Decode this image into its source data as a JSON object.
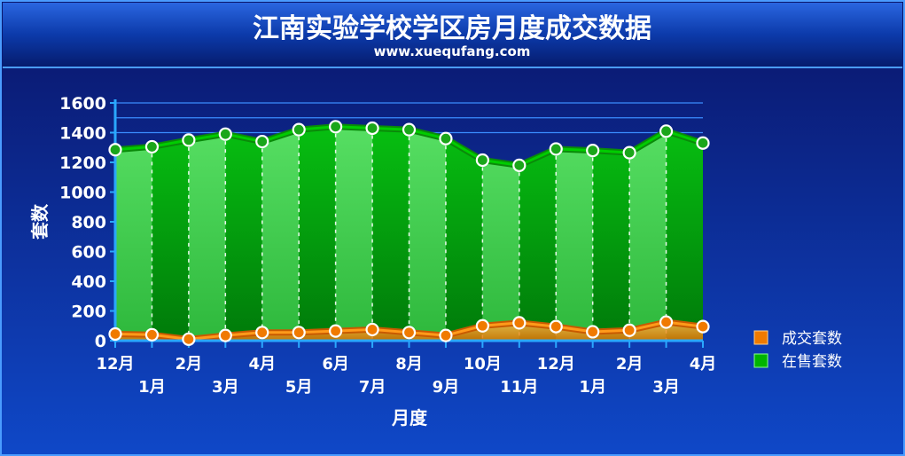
{
  "header": {
    "title": "江南实验学校学区房月度成交数据",
    "subtitle": "www.xuequfang.com"
  },
  "chart_data": {
    "type": "area",
    "xlabel": "月度",
    "ylabel": "套数",
    "ylim": [
      0,
      1600
    ],
    "yticks": [
      0,
      200,
      400,
      600,
      800,
      1000,
      1200,
      1400,
      1600
    ],
    "categories": [
      "12月",
      "1月",
      "2月",
      "3月",
      "4月",
      "5月",
      "6月",
      "7月",
      "8月",
      "9月",
      "10月",
      "11月",
      "12月",
      "1月",
      "2月",
      "3月",
      "4月"
    ],
    "series": [
      {
        "name": "成交套数",
        "color": "#f07a00",
        "values": [
          45,
          40,
          10,
          35,
          55,
          55,
          65,
          75,
          55,
          35,
          100,
          120,
          95,
          60,
          70,
          125,
          95
        ]
      },
      {
        "name": "在售套数",
        "color": "#00b400",
        "values": [
          1285,
          1305,
          1350,
          1390,
          1340,
          1420,
          1440,
          1430,
          1420,
          1360,
          1215,
          1180,
          1290,
          1280,
          1265,
          1410,
          1330
        ]
      }
    ],
    "legend": {
      "position": "right"
    },
    "grid": true
  }
}
